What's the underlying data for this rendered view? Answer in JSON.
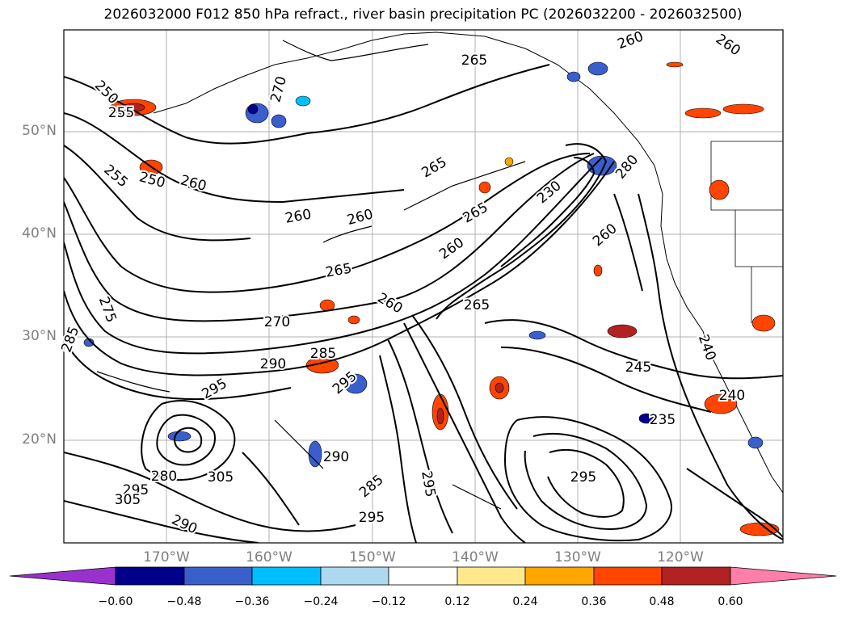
{
  "title": "2026032000 F012 850 hPa refract., river basin precipitation PC (2026032200 - 2026032500)",
  "lat_labels": [
    "50°N",
    "40°N",
    "30°N",
    "20°N"
  ],
  "lon_labels": [
    "170°W",
    "160°W",
    "150°W",
    "140°W",
    "130°W",
    "120°W"
  ],
  "contour_labels": [
    "265",
    "260",
    "260",
    "250",
    "255",
    "250",
    "255",
    "260",
    "260",
    "260",
    "265",
    "260",
    "265",
    "270",
    "260",
    "265",
    "275",
    "285",
    "290",
    "285",
    "295",
    "295",
    "290",
    "305",
    "295",
    "280",
    "305",
    "285",
    "290",
    "295",
    "295",
    "245",
    "240",
    "235",
    "240",
    "270",
    "280",
    "260",
    "265",
    "230",
    "295"
  ],
  "colorbar": {
    "ticks": [
      "−0.60",
      "−0.48",
      "−0.36",
      "−0.24",
      "−0.12",
      "0.12",
      "0.24",
      "0.36",
      "0.48",
      "0.60"
    ],
    "colors": [
      "#9932cc",
      "#00008b",
      "#3a5fcd",
      "#00bfff",
      "#add8f0",
      "#ffffff",
      "#ffe98c",
      "#ffa500",
      "#ff4500",
      "#b22222",
      "#ff7fa8"
    ]
  }
}
